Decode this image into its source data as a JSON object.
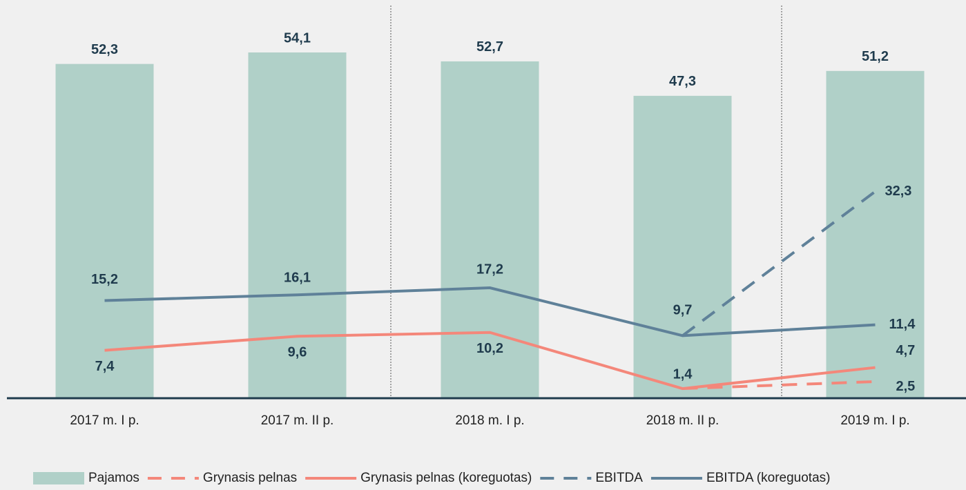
{
  "chart_data": {
    "type": "bar-line",
    "categories": [
      "2017 m. I p.",
      "2017 m. II p.",
      "2018 m. I p.",
      "2018 m. II p.",
      "2019 m. I p."
    ],
    "ylim": [
      0,
      62
    ],
    "series": [
      {
        "name": "Pajamos",
        "type": "bar",
        "color": "#b0d0c8",
        "values": [
          52.3,
          54.1,
          52.7,
          47.3,
          51.2
        ],
        "value_labels": [
          "52,3",
          "54,1",
          "52,7",
          "47,3",
          "51,2"
        ]
      },
      {
        "name": "Grynasis pelnas",
        "type": "line",
        "dashed": true,
        "color": "#f4877a",
        "values": [
          null,
          null,
          null,
          1.4,
          2.5
        ],
        "value_labels": [
          null,
          null,
          null,
          null,
          "2,5"
        ]
      },
      {
        "name": "Grynasis pelnas (koreguotas)",
        "type": "line",
        "dashed": false,
        "color": "#f4877a",
        "values": [
          7.4,
          9.6,
          10.2,
          1.4,
          4.7
        ],
        "value_labels": [
          "7,4",
          "9,6",
          "10,2",
          "1,4",
          "4,7"
        ]
      },
      {
        "name": "EBITDA",
        "type": "line",
        "dashed": true,
        "color": "#5f8199",
        "values": [
          null,
          null,
          null,
          9.7,
          32.3
        ],
        "value_labels": [
          null,
          null,
          null,
          null,
          "32,3"
        ]
      },
      {
        "name": "EBITDA (koreguotas)",
        "type": "line",
        "dashed": false,
        "color": "#5f8199",
        "values": [
          15.2,
          16.1,
          17.2,
          9.7,
          11.4
        ],
        "value_labels": [
          "15,2",
          "16,1",
          "17,2",
          "9,7",
          "11,4"
        ]
      }
    ]
  }
}
